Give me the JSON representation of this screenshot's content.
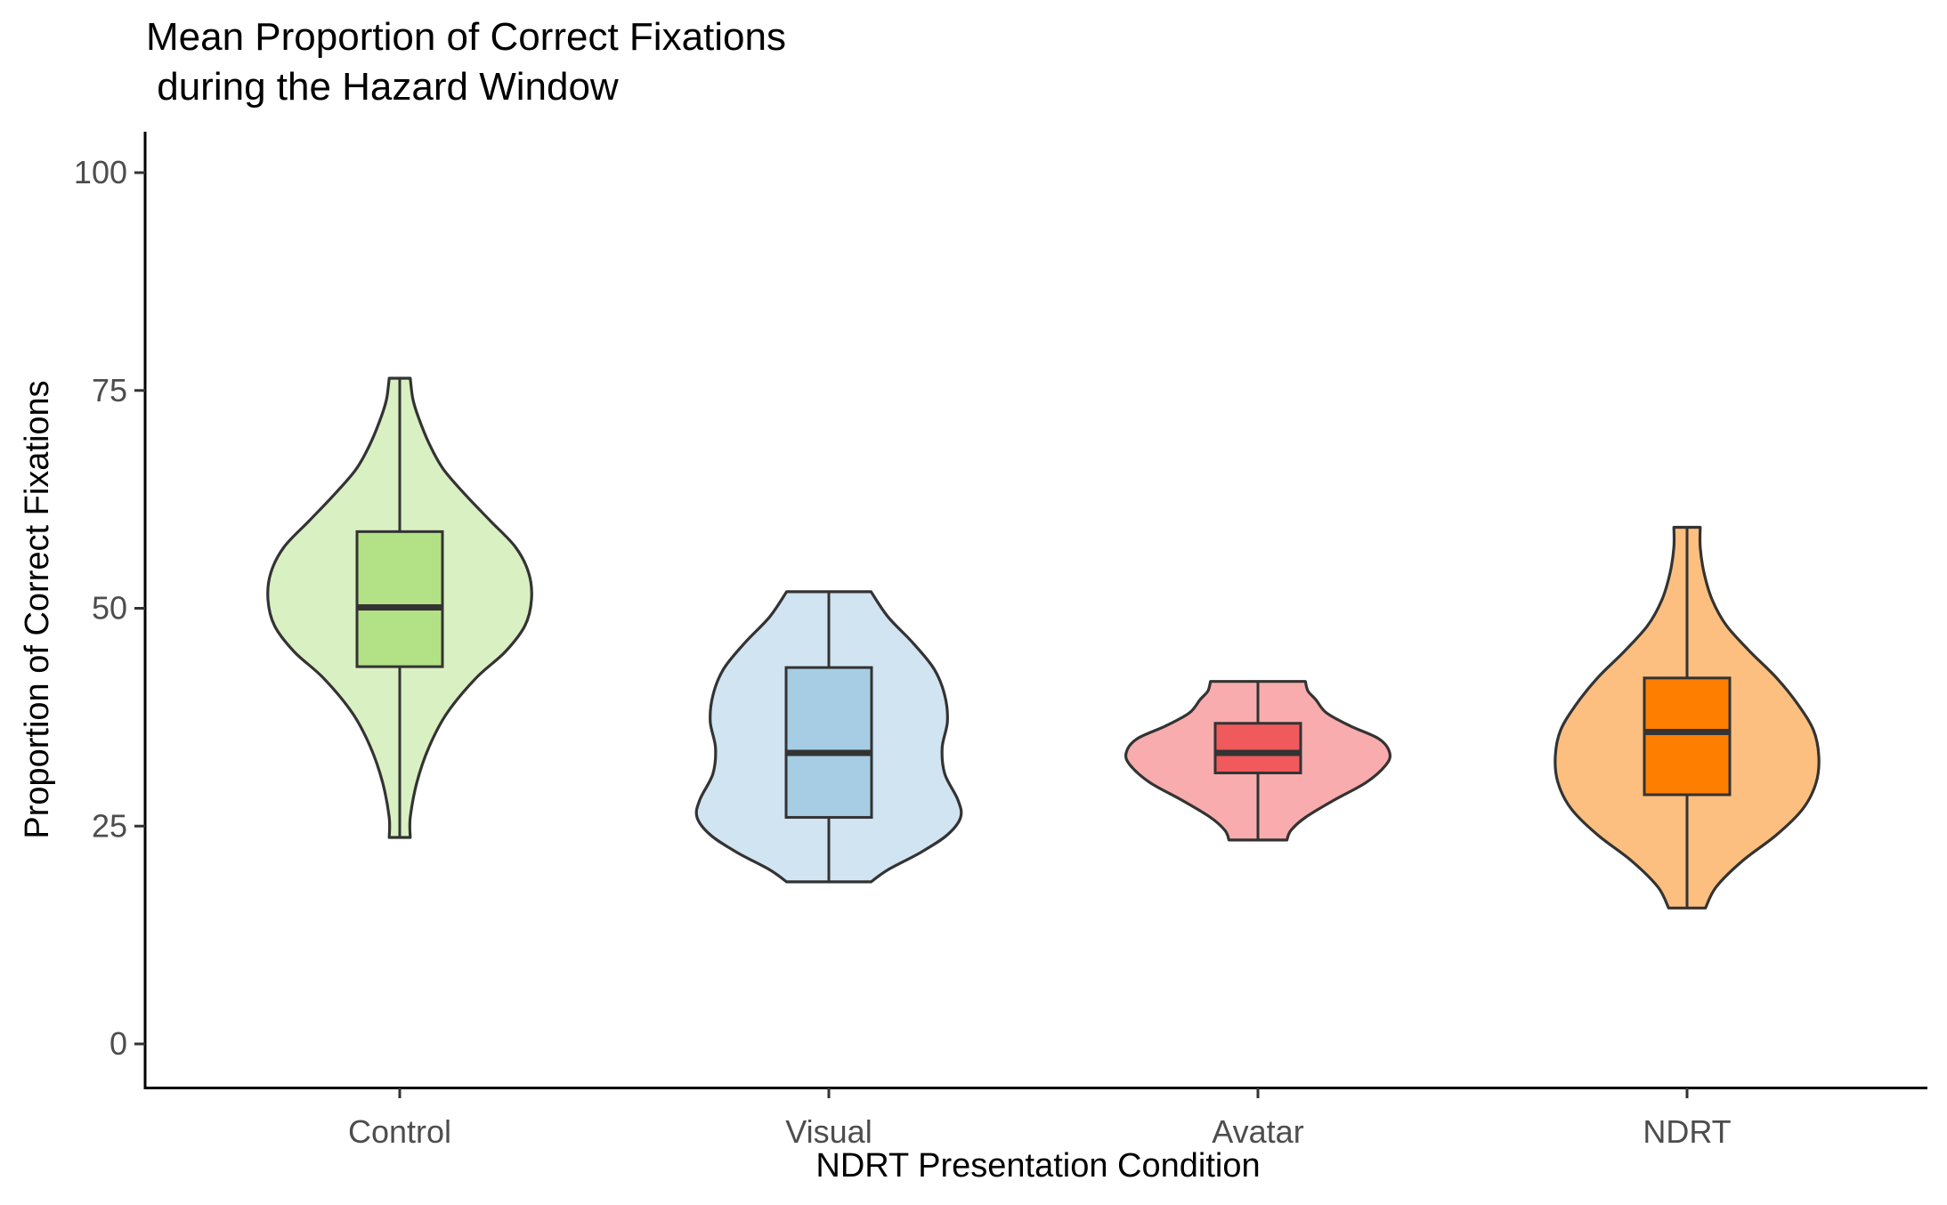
{
  "chart_data": {
    "type": "violin",
    "title_lines": [
      "Mean Proportion of Correct Fixations",
      " during the Hazard Window"
    ],
    "xlabel": "NDRT Presentation Condition",
    "ylabel": "Proportion of Correct Fixations",
    "ylim": [
      -5,
      105
    ],
    "yticks": [
      0,
      25,
      50,
      75,
      100
    ],
    "ytick_labels": [
      "0",
      "25",
      "50",
      "75",
      "100"
    ],
    "grid": false,
    "legend": "none",
    "categories": [
      "Control",
      "Visual",
      "Avatar",
      "NDRT"
    ],
    "groups": [
      {
        "category": "Control",
        "violin_color": "#d9f0c3",
        "box_color": "#b3e186",
        "min": 23.7,
        "q1": 43.3,
        "median": 50.1,
        "q3": 58.8,
        "max": 76.4,
        "density": [
          [
            23.7,
            0.08
          ],
          [
            26,
            0.08
          ],
          [
            30,
            0.13
          ],
          [
            34,
            0.22
          ],
          [
            38,
            0.36
          ],
          [
            42,
            0.58
          ],
          [
            45,
            0.8
          ],
          [
            48,
            0.95
          ],
          [
            51,
            1.0
          ],
          [
            54,
            0.98
          ],
          [
            57,
            0.88
          ],
          [
            60,
            0.69
          ],
          [
            63,
            0.5
          ],
          [
            66,
            0.33
          ],
          [
            69,
            0.22
          ],
          [
            72,
            0.14
          ],
          [
            74,
            0.1
          ],
          [
            76.4,
            0.08
          ]
        ]
      },
      {
        "category": "Visual",
        "violin_color": "#d0e4f2",
        "box_color": "#a6cde3",
        "min": 18.6,
        "q1": 26.0,
        "median": 33.4,
        "q3": 43.2,
        "max": 51.9,
        "density": [
          [
            18.6,
            0.32
          ],
          [
            20,
            0.45
          ],
          [
            22,
            0.7
          ],
          [
            24,
            0.9
          ],
          [
            26,
            1.0
          ],
          [
            28,
            0.98
          ],
          [
            31,
            0.88
          ],
          [
            34,
            0.86
          ],
          [
            37,
            0.9
          ],
          [
            40,
            0.88
          ],
          [
            43,
            0.8
          ],
          [
            46,
            0.64
          ],
          [
            49,
            0.45
          ],
          [
            51.9,
            0.32
          ]
        ]
      },
      {
        "category": "Avatar",
        "violin_color": "#f9acad",
        "box_color": "#f05a5c",
        "min": 23.4,
        "q1": 31.1,
        "median": 33.4,
        "q3": 36.8,
        "max": 41.6,
        "density": [
          [
            23.4,
            0.22
          ],
          [
            24.5,
            0.25
          ],
          [
            26,
            0.36
          ],
          [
            28,
            0.58
          ],
          [
            30,
            0.82
          ],
          [
            32,
            0.97
          ],
          [
            33.4,
            1.0
          ],
          [
            35,
            0.92
          ],
          [
            36.5,
            0.7
          ],
          [
            38,
            0.52
          ],
          [
            39.5,
            0.44
          ],
          [
            40.5,
            0.38
          ],
          [
            41.6,
            0.36
          ]
        ]
      },
      {
        "category": "NDRT",
        "violin_color": "#fdbf7f",
        "box_color": "#fe7f00",
        "min": 15.6,
        "q1": 28.6,
        "median": 35.8,
        "q3": 42.0,
        "max": 59.3,
        "density": [
          [
            15.6,
            0.14
          ],
          [
            18,
            0.22
          ],
          [
            21,
            0.42
          ],
          [
            24,
            0.68
          ],
          [
            27,
            0.88
          ],
          [
            30,
            0.98
          ],
          [
            33,
            1.0
          ],
          [
            36,
            0.96
          ],
          [
            39,
            0.84
          ],
          [
            42,
            0.68
          ],
          [
            45,
            0.48
          ],
          [
            48,
            0.3
          ],
          [
            51,
            0.19
          ],
          [
            54,
            0.13
          ],
          [
            57,
            0.1
          ],
          [
            59.3,
            0.1
          ]
        ]
      }
    ]
  }
}
